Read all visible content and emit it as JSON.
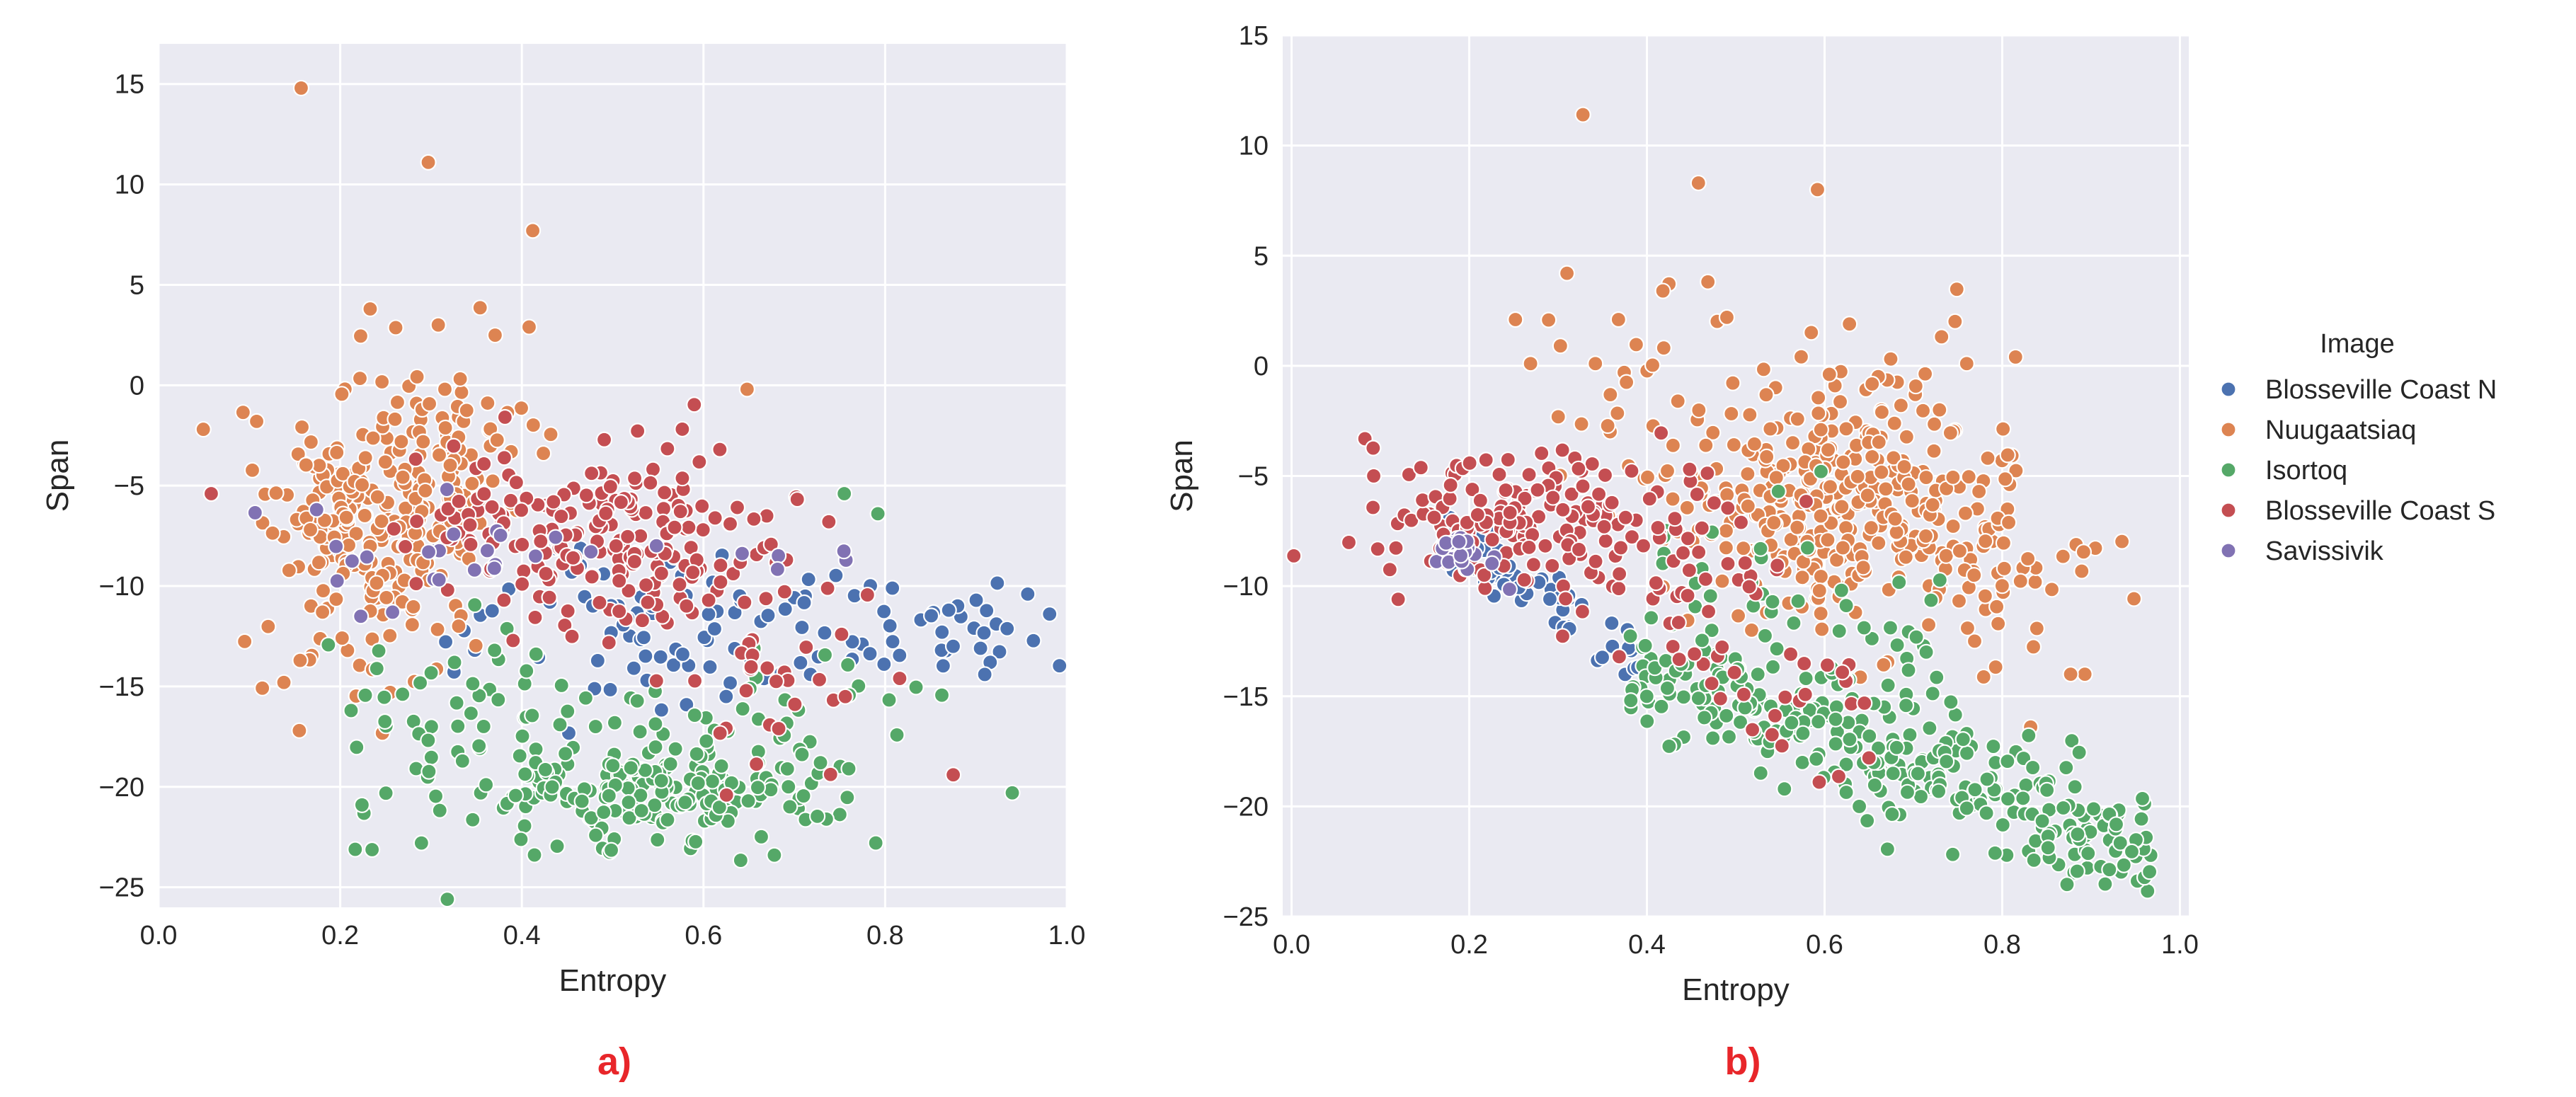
{
  "theme": {
    "panel_background": "#eaeaf2",
    "grid_color": "#ffffff",
    "marker_edge": "#ffffff",
    "caption_color": "#e8262a"
  },
  "legend": {
    "title": "Image",
    "entries": [
      {
        "label": "Blosseville Coast N",
        "color": "#4c72b0"
      },
      {
        "label": "Nuugaatsiaq",
        "color": "#dd8452"
      },
      {
        "label": "Isortoq",
        "color": "#55a868"
      },
      {
        "label": "Blosseville Coast S",
        "color": "#c44e52"
      },
      {
        "label": "Savissivik",
        "color": "#8172b3"
      }
    ],
    "placement": "right of panel b"
  },
  "chart_data": [
    {
      "panel": "a)",
      "type": "scatter",
      "title": "",
      "xlabel": "Entropy",
      "ylabel": "Span",
      "xlim": [
        0.0,
        1.0
      ],
      "ylim": [
        -26,
        17
      ],
      "xticks": [
        0.0,
        0.2,
        0.4,
        0.6,
        0.8,
        1.0
      ],
      "xtick_labels": [
        "0.0",
        "0.2",
        "0.4",
        "0.6",
        "0.8",
        "1.0"
      ],
      "yticks": [
        -25,
        -20,
        -15,
        -10,
        -5,
        0,
        5,
        10,
        15
      ],
      "ytick_labels": [
        "−25",
        "−20",
        "−15",
        "−10",
        "−5",
        "0",
        "5",
        "10",
        "15"
      ],
      "grid": true,
      "series_order": [
        "Blosseville Coast N",
        "Nuugaatsiaq",
        "Isortoq",
        "Blosseville Coast S",
        "Savissivik"
      ],
      "clusters": {
        "Blosseville Coast N": [
          {
            "n": 70,
            "x": [
              0.62,
              0.12
            ],
            "y": [
              -12.2,
              1.8
            ]
          },
          {
            "n": 28,
            "x": [
              0.85,
              0.06
            ],
            "y": [
              -12.8,
              1.2
            ]
          },
          {
            "n": 14,
            "x": [
              0.45,
              0.08
            ],
            "y": [
              -11.5,
              2.0
            ]
          }
        ],
        "Nuugaatsiaq": [
          {
            "n": 230,
            "x": [
              0.24,
              0.055
            ],
            "y": [
              -6.5,
              3.0
            ]
          },
          {
            "n": 45,
            "x": [
              0.33,
              0.04
            ],
            "y": [
              -3.0,
              2.2
            ]
          },
          {
            "n": 25,
            "x": [
              0.18,
              0.05
            ],
            "y": [
              -11.0,
              2.5
            ]
          }
        ],
        "Isortoq": [
          {
            "n": 190,
            "x": [
              0.56,
              0.1
            ],
            "y": [
              -20.0,
              1.4
            ]
          },
          {
            "n": 40,
            "x": [
              0.38,
              0.07
            ],
            "y": [
              -17.0,
              2.5
            ]
          },
          {
            "n": 30,
            "x": [
              0.66,
              0.08
            ],
            "y": [
              -16.5,
              2.0
            ]
          },
          {
            "n": 25,
            "x": [
              0.28,
              0.07
            ],
            "y": [
              -18.0,
              3.0
            ]
          }
        ],
        "Blosseville Coast S": [
          {
            "n": 190,
            "x": [
              0.5,
              0.09
            ],
            "y": [
              -7.5,
              2.2
            ]
          },
          {
            "n": 30,
            "x": [
              0.66,
              0.05
            ],
            "y": [
              -14.0,
              2.5
            ]
          },
          {
            "n": 20,
            "x": [
              0.35,
              0.05
            ],
            "y": [
              -5.5,
              1.8
            ]
          }
        ],
        "Savissivik": [
          {
            "n": 25,
            "x": [
              0.3,
              0.09
            ],
            "y": [
              -8.5,
              1.5
            ]
          },
          {
            "n": 5,
            "x": [
              0.75,
              0.04
            ],
            "y": [
              -9.0,
              0.8
            ]
          }
        ]
      },
      "points": {
        "Nuugaatsiaq": [
          [
            0.157,
            14.8
          ],
          [
            0.297,
            11.1
          ],
          [
            0.412,
            7.7
          ],
          [
            0.233,
            3.8
          ],
          [
            0.308,
            3.0
          ],
          [
            0.408,
            2.9
          ],
          [
            0.648,
            -0.2
          ],
          [
            0.108,
            -1.8
          ],
          [
            0.155,
            -17.2
          ],
          [
            0.138,
            -14.8
          ],
          [
            0.255,
            -15.3
          ]
        ],
        "Blosseville Coast S": [
          [
            0.058,
            -5.4
          ],
          [
            0.618,
            -3.2
          ],
          [
            0.738,
            -6.8
          ],
          [
            0.816,
            -14.6
          ],
          [
            0.875,
            -19.4
          ]
        ],
        "Isortoq": [
          [
            0.94,
            -20.3
          ],
          [
            0.678,
            -23.4
          ],
          [
            0.224,
            -20.9
          ],
          [
            0.212,
            -16.2
          ],
          [
            0.755,
            -5.4
          ],
          [
            0.792,
            -6.4
          ]
        ],
        "Blosseville Coast N": [
          [
            0.957,
            -10.4
          ],
          [
            0.905,
            -13.1
          ],
          [
            0.87,
            -11.2
          ]
        ]
      }
    },
    {
      "panel": "b)",
      "type": "scatter",
      "title": "",
      "xlabel": "Entropy",
      "ylabel": "Span",
      "xlim": [
        -0.01,
        1.01
      ],
      "ylim": [
        -25,
        15
      ],
      "xticks": [
        0.0,
        0.2,
        0.4,
        0.6,
        0.8,
        1.0
      ],
      "xtick_labels": [
        "0.0",
        "0.2",
        "0.4",
        "0.6",
        "0.8",
        "1.0"
      ],
      "yticks": [
        -25,
        -20,
        -15,
        -10,
        -5,
        0,
        5,
        10,
        15
      ],
      "ytick_labels": [
        "−25",
        "−20",
        "−15",
        "−10",
        "−5",
        "0",
        "5",
        "10",
        "15"
      ],
      "grid": true,
      "series_order": [
        "Blosseville Coast N",
        "Nuugaatsiaq",
        "Isortoq",
        "Blosseville Coast S",
        "Savissivik"
      ],
      "bands": {
        "Isortoq": [
          {
            "n": 300,
            "x": [
              0.38,
              0.97
            ],
            "slope": -14.2,
            "intercept": -8.3,
            "spread": 1.3
          },
          {
            "n": 60,
            "x": [
              0.4,
              0.78
            ],
            "slope": -13.0,
            "intercept": -4.5,
            "spread": 2.2
          }
        ],
        "Blosseville Coast N": [
          {
            "n": 55,
            "x": [
              0.17,
              0.4
            ],
            "slope": -26.0,
            "intercept": -3.0,
            "spread": 0.8
          }
        ],
        "Savissivik": [
          {
            "n": 22,
            "x": [
              0.16,
              0.25
            ],
            "slope": -20.0,
            "intercept": -4.5,
            "spread": 0.7
          }
        ]
      },
      "clusters": {
        "Nuugaatsiaq": [
          {
            "n": 330,
            "x": [
              0.62,
              0.095
            ],
            "y": [
              -6.0,
              2.8
            ]
          },
          {
            "n": 40,
            "x": [
              0.8,
              0.05
            ],
            "y": [
              -10.0,
              1.8
            ]
          },
          {
            "n": 35,
            "x": [
              0.42,
              0.06
            ],
            "y": [
              -2.0,
              2.5
            ]
          }
        ],
        "Blosseville Coast S": [
          {
            "n": 180,
            "x": [
              0.26,
              0.09
            ],
            "y": [
              -7.0,
              1.6
            ]
          },
          {
            "n": 40,
            "x": [
              0.48,
              0.06
            ],
            "y": [
              -10.5,
              2.5
            ]
          },
          {
            "n": 15,
            "x": [
              0.57,
              0.05
            ],
            "y": [
              -16.0,
              1.5
            ]
          }
        ]
      },
      "points": {
        "Nuugaatsiaq": [
          [
            0.328,
            11.4
          ],
          [
            0.458,
            8.3
          ],
          [
            0.592,
            8.0
          ],
          [
            0.31,
            4.2
          ],
          [
            0.418,
            3.4
          ],
          [
            0.252,
            2.1
          ],
          [
            0.368,
            2.1
          ],
          [
            0.49,
            2.2
          ],
          [
            0.628,
            1.9
          ],
          [
            0.269,
            0.1
          ],
          [
            0.342,
            0.1
          ],
          [
            0.815,
            0.4
          ],
          [
            0.76,
            0.1
          ],
          [
            0.893,
            -14.0
          ],
          [
            0.877,
            -14.0
          ],
          [
            0.832,
            -16.4
          ]
        ],
        "Isortoq": [
          [
            0.596,
            -4.8
          ],
          [
            0.548,
            -5.7
          ]
        ],
        "Blosseville Coast S": [
          [
            0.594,
            -18.9
          ],
          [
            0.65,
            -17.8
          ],
          [
            0.12,
            -10.6
          ]
        ]
      }
    }
  ],
  "captions": {
    "a": "a)",
    "b": "b)"
  }
}
